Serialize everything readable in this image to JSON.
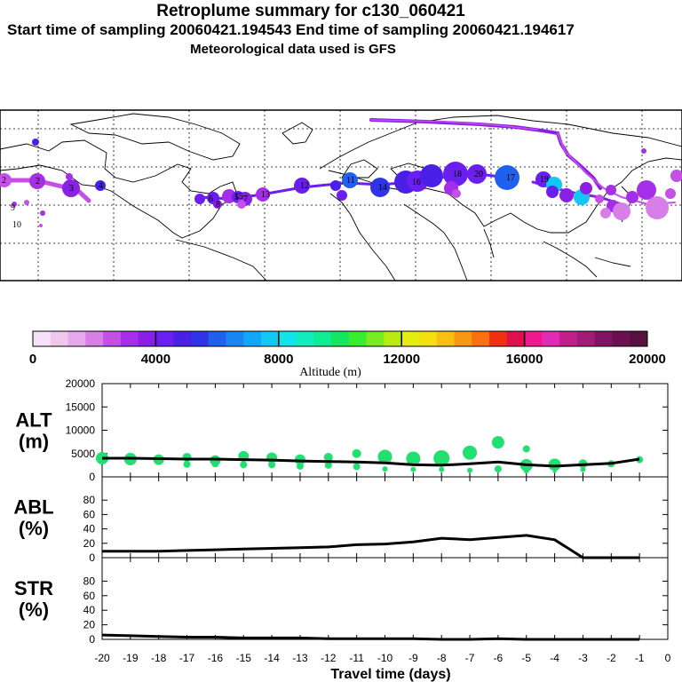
{
  "header": {
    "title": "Retroplume summary for c130_060421",
    "sampling": "Start time of sampling 20060421.194543     End time of sampling 20060421.194617",
    "met": "Meteorological data used is GFS"
  },
  "colorbar": {
    "ticks": [
      "0",
      "4000",
      "8000",
      "12000",
      "16000",
      "20000"
    ],
    "label": "Altitude (m)",
    "colors": [
      "#f6e2f6",
      "#eec6ee",
      "#e6a8ec",
      "#d77ee8",
      "#c450e6",
      "#a52fe8",
      "#8a1fe6",
      "#6a1ff0",
      "#4a20e6",
      "#2f35e6",
      "#2060ee",
      "#1a86f4",
      "#10a8f6",
      "#10c8f4",
      "#10e4ec",
      "#10ecc0",
      "#10ec90",
      "#14e860",
      "#38ec30",
      "#78ec20",
      "#b8ec10",
      "#e4ec10",
      "#f4e010",
      "#f8c010",
      "#f89810",
      "#f87010",
      "#f03010",
      "#e01050",
      "#f01890",
      "#e02cb4",
      "#c0208c",
      "#a01c78",
      "#801464",
      "#6a1050",
      "#581040"
    ]
  },
  "map": {
    "labels": [
      "2",
      "2",
      "3",
      "4",
      "5",
      "6",
      "7",
      "8",
      "9",
      "10",
      "11",
      "12",
      "13",
      "14",
      "15",
      "16",
      "17",
      "18",
      "19",
      "20"
    ]
  },
  "chart_data": [
    {
      "type": "line",
      "name": "ALT",
      "ylabel": "ALT\n(m)",
      "ylim": [
        0,
        20000
      ],
      "yticks": [
        "20000",
        "15000",
        "10000",
        "5000",
        "0"
      ],
      "x": [
        -20,
        -19,
        -18,
        -17,
        -16,
        -15,
        -14,
        -13,
        -12,
        -11,
        -10,
        -9,
        -8,
        -7,
        -6,
        -5,
        -4,
        -3,
        -2,
        -1
      ],
      "values": [
        4000,
        4000,
        3900,
        3800,
        3800,
        3700,
        3600,
        3400,
        3300,
        3200,
        3000,
        2600,
        2500,
        2800,
        3200,
        2600,
        2300,
        2600,
        2900,
        3800
      ],
      "scatter": [
        {
          "x": -20,
          "y": 4000,
          "r": 7
        },
        {
          "x": -19,
          "y": 3800,
          "r": 7
        },
        {
          "x": -18,
          "y": 3700,
          "r": 6
        },
        {
          "x": -17,
          "y": 4200,
          "r": 5
        },
        {
          "x": -17,
          "y": 2700,
          "r": 4
        },
        {
          "x": -16,
          "y": 3500,
          "r": 6
        },
        {
          "x": -16,
          "y": 2800,
          "r": 4
        },
        {
          "x": -15,
          "y": 4400,
          "r": 6
        },
        {
          "x": -15,
          "y": 2600,
          "r": 4
        },
        {
          "x": -14,
          "y": 4100,
          "r": 6
        },
        {
          "x": -14,
          "y": 2600,
          "r": 4
        },
        {
          "x": -13,
          "y": 3700,
          "r": 6
        },
        {
          "x": -13,
          "y": 2300,
          "r": 4
        },
        {
          "x": -12,
          "y": 4200,
          "r": 5
        },
        {
          "x": -12,
          "y": 2500,
          "r": 4
        },
        {
          "x": -11,
          "y": 5000,
          "r": 5
        },
        {
          "x": -11,
          "y": 2200,
          "r": 4
        },
        {
          "x": -10,
          "y": 4300,
          "r": 8
        },
        {
          "x": -10,
          "y": 1700,
          "r": 3
        },
        {
          "x": -9,
          "y": 3900,
          "r": 8
        },
        {
          "x": -9,
          "y": 1600,
          "r": 3
        },
        {
          "x": -8,
          "y": 4000,
          "r": 9
        },
        {
          "x": -8,
          "y": 1600,
          "r": 3
        },
        {
          "x": -7,
          "y": 5200,
          "r": 8
        },
        {
          "x": -7,
          "y": 1400,
          "r": 3
        },
        {
          "x": -6,
          "y": 7400,
          "r": 7
        },
        {
          "x": -6,
          "y": 1700,
          "r": 4
        },
        {
          "x": -5,
          "y": 6000,
          "r": 4
        },
        {
          "x": -5,
          "y": 2500,
          "r": 7
        },
        {
          "x": -5,
          "y": 1300,
          "r": 3
        },
        {
          "x": -4,
          "y": 2600,
          "r": 7
        },
        {
          "x": -4,
          "y": 1200,
          "r": 2
        },
        {
          "x": -3,
          "y": 2800,
          "r": 5
        },
        {
          "x": -3,
          "y": 1600,
          "r": 3
        },
        {
          "x": -2,
          "y": 2800,
          "r": 4
        },
        {
          "x": -1,
          "y": 3700,
          "r": 4
        }
      ]
    },
    {
      "type": "line",
      "name": "ABL",
      "ylabel": "ABL\n(%)",
      "ylim": [
        0,
        100
      ],
      "yticks": [
        "80",
        "60",
        "40",
        "20",
        "0"
      ],
      "x": [
        -20,
        -19,
        -18,
        -17,
        -16,
        -15,
        -14,
        -13,
        -12,
        -11,
        -10,
        -9,
        -8,
        -7,
        -6,
        -5,
        -4,
        -3,
        -2,
        -1
      ],
      "values": [
        9,
        9,
        9,
        10,
        11,
        12,
        13,
        14,
        15,
        18,
        19,
        22,
        27,
        25,
        28,
        31,
        25,
        0,
        0,
        0
      ]
    },
    {
      "type": "line",
      "name": "STR",
      "ylabel": "STR\n(%)",
      "ylim": [
        0,
        100
      ],
      "yticks": [
        "80",
        "60",
        "40",
        "20",
        "0"
      ],
      "x": [
        -20,
        -19,
        -18,
        -17,
        -16,
        -15,
        -14,
        -13,
        -12,
        -11,
        -10,
        -9,
        -8,
        -7,
        -6,
        -5,
        -4,
        -3,
        -2,
        -1
      ],
      "values": [
        6,
        5,
        4,
        3,
        3,
        2,
        2,
        2,
        1,
        1,
        1,
        1,
        0,
        0,
        1,
        0,
        0,
        0,
        0,
        0
      ]
    }
  ],
  "xaxis": {
    "ticks": [
      "-20",
      "-19",
      "-18",
      "-17",
      "-16",
      "-15",
      "-14",
      "-13",
      "-12",
      "-11",
      "-10",
      "-9",
      "-8",
      "-7",
      "-6",
      "-5",
      "-4",
      "-3",
      "-2",
      "-1",
      "0"
    ],
    "label": "Travel time (days)"
  },
  "colors": {
    "line": "#000000",
    "points": "#22e070",
    "bg": "#ffffff"
  }
}
